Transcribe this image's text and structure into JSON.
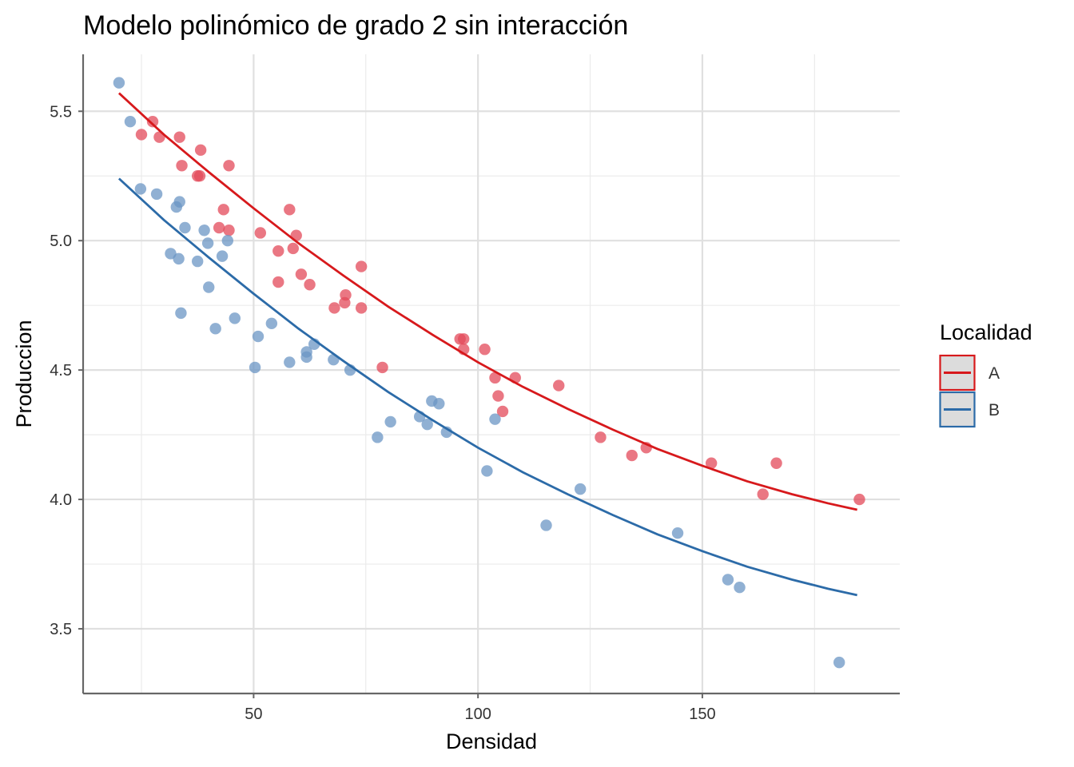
{
  "chart_data": {
    "type": "scatter",
    "title": "Modelo polinómico de grado 2 sin interacción",
    "xlabel": "Densidad",
    "ylabel": "Produccion",
    "xlim": [
      12,
      194
    ],
    "ylim": [
      3.25,
      5.72
    ],
    "x_ticks": [
      {
        "value": 50,
        "label": "50"
      },
      {
        "value": 100,
        "label": "100"
      },
      {
        "value": 150,
        "label": "150"
      }
    ],
    "y_ticks": [
      {
        "value": 3.5,
        "label": "3.5"
      },
      {
        "value": 4.0,
        "label": "4.0"
      },
      {
        "value": 4.5,
        "label": "4.5"
      },
      {
        "value": 5.0,
        "label": "5.0"
      },
      {
        "value": 5.5,
        "label": "5.5"
      }
    ],
    "x_minor": [
      25,
      75,
      125,
      175
    ],
    "y_minor": [
      3.75,
      4.25,
      4.75,
      5.25
    ],
    "legend": {
      "title": "Localidad",
      "position": "right",
      "items": [
        {
          "label": "A",
          "color": "#d7191c"
        },
        {
          "label": "B",
          "color": "#2c6ba8"
        }
      ]
    },
    "series": [
      {
        "name": "A",
        "point_color": "#e34a5a",
        "line_color": "#d7191c",
        "points": [
          [
            25,
            5.41
          ],
          [
            27.5,
            5.46
          ],
          [
            29,
            5.4
          ],
          [
            33.5,
            5.4
          ],
          [
            34,
            5.29
          ],
          [
            37.5,
            5.25
          ],
          [
            38,
            5.25
          ],
          [
            38.2,
            5.35
          ],
          [
            42.3,
            5.05
          ],
          [
            43.3,
            5.12
          ],
          [
            44.5,
            5.04
          ],
          [
            44.5,
            5.29
          ],
          [
            51.5,
            5.03
          ],
          [
            55.5,
            4.96
          ],
          [
            55.5,
            4.84
          ],
          [
            58,
            5.12
          ],
          [
            58.8,
            4.97
          ],
          [
            59.5,
            5.02
          ],
          [
            60.6,
            4.87
          ],
          [
            62.5,
            4.83
          ],
          [
            68,
            4.74
          ],
          [
            70.3,
            4.76
          ],
          [
            70.5,
            4.79
          ],
          [
            74,
            4.74
          ],
          [
            74,
            4.9
          ],
          [
            78.7,
            4.51
          ],
          [
            96,
            4.62
          ],
          [
            96.8,
            4.62
          ],
          [
            96.8,
            4.58
          ],
          [
            101.5,
            4.58
          ],
          [
            103.8,
            4.47
          ],
          [
            104.5,
            4.4
          ],
          [
            105.5,
            4.34
          ],
          [
            108.3,
            4.47
          ],
          [
            118,
            4.44
          ],
          [
            127.3,
            4.24
          ],
          [
            134.3,
            4.17
          ],
          [
            137.5,
            4.2
          ],
          [
            152,
            4.14
          ],
          [
            163.5,
            4.02
          ],
          [
            166.5,
            4.14
          ],
          [
            185,
            4.0
          ]
        ],
        "fit": [
          [
            20,
            5.57
          ],
          [
            30,
            5.41
          ],
          [
            40,
            5.265
          ],
          [
            50,
            5.125
          ],
          [
            60,
            4.99
          ],
          [
            70,
            4.865
          ],
          [
            80,
            4.745
          ],
          [
            90,
            4.635
          ],
          [
            100,
            4.53
          ],
          [
            110,
            4.435
          ],
          [
            120,
            4.35
          ],
          [
            130,
            4.27
          ],
          [
            140,
            4.195
          ],
          [
            150,
            4.13
          ],
          [
            160,
            4.07
          ],
          [
            170,
            4.02
          ],
          [
            178,
            3.985
          ],
          [
            184.5,
            3.96
          ]
        ]
      },
      {
        "name": "B",
        "point_color": "#6b95c4",
        "line_color": "#2c6ba8",
        "points": [
          [
            20,
            5.61
          ],
          [
            22.5,
            5.46
          ],
          [
            24.8,
            5.2
          ],
          [
            28.4,
            5.18
          ],
          [
            31.5,
            4.95
          ],
          [
            32.8,
            5.13
          ],
          [
            33.3,
            4.93
          ],
          [
            33.5,
            5.15
          ],
          [
            33.8,
            4.72
          ],
          [
            34.7,
            5.05
          ],
          [
            37.5,
            4.92
          ],
          [
            39,
            5.04
          ],
          [
            39.8,
            4.99
          ],
          [
            40,
            4.82
          ],
          [
            41.5,
            4.66
          ],
          [
            43,
            4.94
          ],
          [
            44.2,
            5.0
          ],
          [
            45.8,
            4.7
          ],
          [
            50.3,
            4.51
          ],
          [
            51,
            4.63
          ],
          [
            54,
            4.68
          ],
          [
            58,
            4.53
          ],
          [
            61.8,
            4.57
          ],
          [
            61.8,
            4.55
          ],
          [
            63.5,
            4.6
          ],
          [
            67.8,
            4.54
          ],
          [
            71.5,
            4.5
          ],
          [
            77.6,
            4.24
          ],
          [
            80.5,
            4.3
          ],
          [
            87,
            4.32
          ],
          [
            88.7,
            4.29
          ],
          [
            89.7,
            4.38
          ],
          [
            91.3,
            4.37
          ],
          [
            93,
            4.26
          ],
          [
            102,
            4.11
          ],
          [
            103.8,
            4.31
          ],
          [
            115.2,
            3.9
          ],
          [
            122.8,
            4.04
          ],
          [
            144.5,
            3.87
          ],
          [
            155.7,
            3.69
          ],
          [
            158.3,
            3.66
          ],
          [
            180.5,
            3.37
          ]
        ],
        "fit": [
          [
            20,
            5.24
          ],
          [
            30,
            5.08
          ],
          [
            40,
            4.935
          ],
          [
            50,
            4.795
          ],
          [
            60,
            4.66
          ],
          [
            70,
            4.535
          ],
          [
            80,
            4.415
          ],
          [
            90,
            4.305
          ],
          [
            100,
            4.2
          ],
          [
            110,
            4.105
          ],
          [
            120,
            4.02
          ],
          [
            130,
            3.94
          ],
          [
            140,
            3.865
          ],
          [
            150,
            3.8
          ],
          [
            160,
            3.74
          ],
          [
            170,
            3.69
          ],
          [
            178,
            3.655
          ],
          [
            184.5,
            3.63
          ]
        ]
      }
    ]
  }
}
